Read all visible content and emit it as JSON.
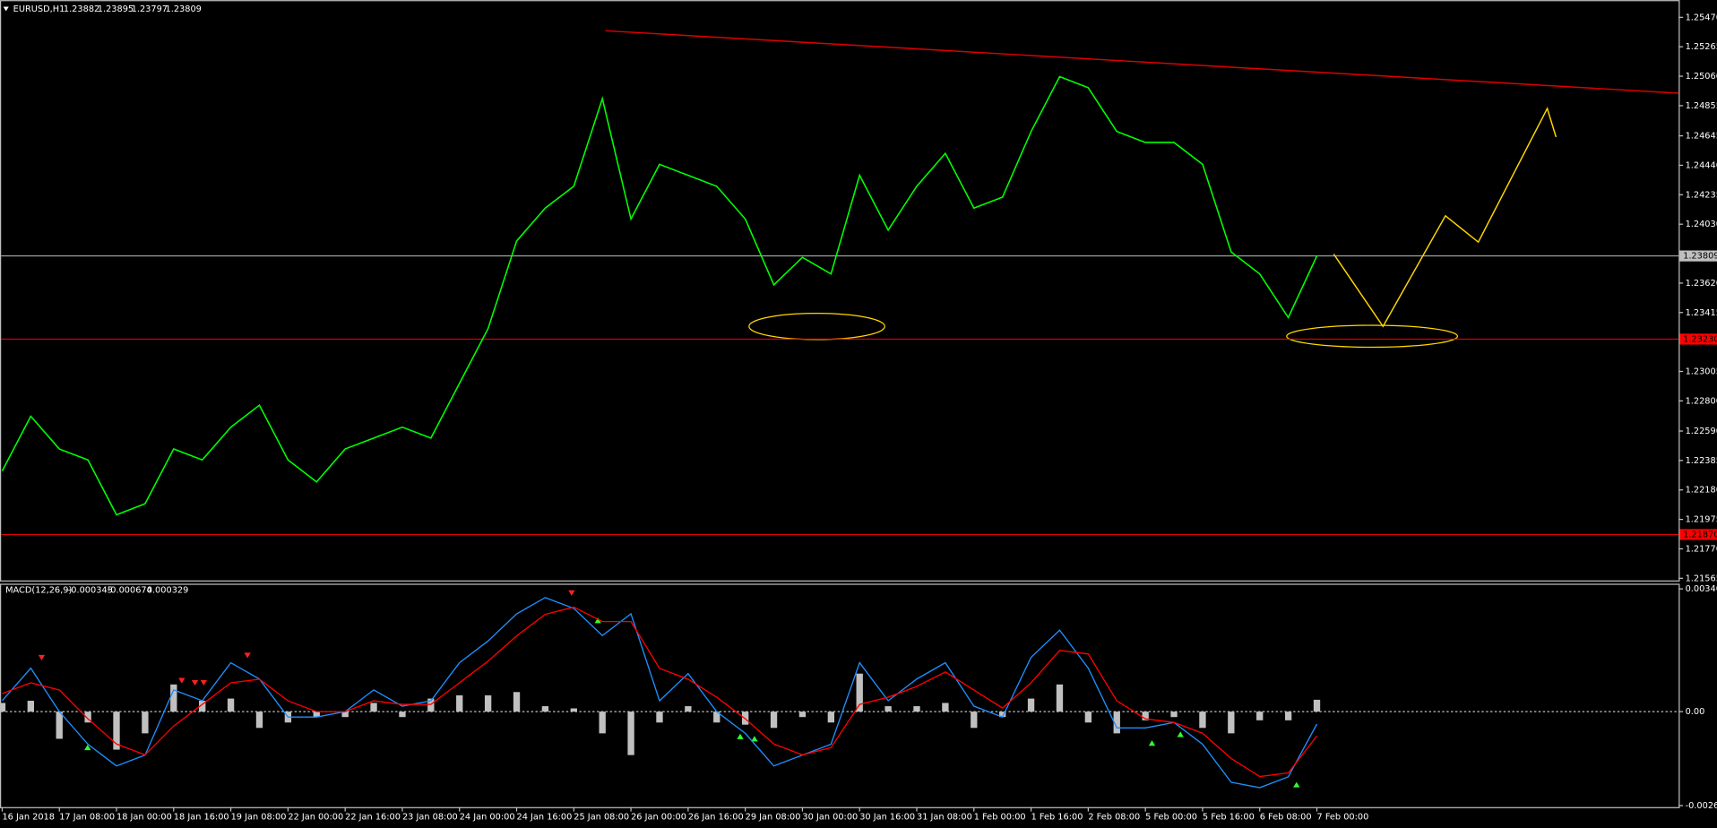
{
  "chart_data": [
    {
      "type": "line",
      "title": "EURUSD,H1",
      "ohlc": [
        1.23882,
        1.23895,
        1.23797,
        1.23809
      ],
      "categories": [
        "16 Jan 2018",
        null,
        "17 Jan 08:00",
        null,
        "18 Jan 00:00",
        null,
        "18 Jan 16:00",
        null,
        "19 Jan 08:00",
        null,
        "22 Jan 00:00",
        null,
        "22 Jan 16:00",
        null,
        "23 Jan 08:00",
        null,
        "24 Jan 00:00",
        null,
        "24 Jan 16:00",
        null,
        "25 Jan 08:00",
        null,
        "26 Jan 00:00",
        null,
        "26 Jan 16:00",
        null,
        "29 Jan 08:00",
        null,
        "30 Jan 00:00",
        null,
        "30 Jan 16:00",
        null,
        "31 Jan 08:00",
        null,
        "1 Feb 00:00",
        null,
        "1 Feb 16:00",
        null,
        "2 Feb 08:00",
        null,
        "5 Feb 00:00",
        null,
        "5 Feb 16:00",
        null,
        "6 Feb 08:00",
        null,
        "7 Feb 00:00"
      ],
      "series": [
        {
          "color": "#00ff00",
          "values": [
            1.22312,
            1.22693,
            1.22465,
            1.22389,
            1.22007,
            1.22084,
            1.22465,
            1.22389,
            1.22617,
            1.2277,
            1.22389,
            1.22236,
            1.22465,
            1.22541,
            1.22617,
            1.22541,
            1.22922,
            1.23303,
            1.23913,
            1.24142,
            1.24294,
            1.24904,
            1.24066,
            1.24447,
            1.2437,
            1.24294,
            1.24066,
            1.23608,
            1.23799,
            1.23684,
            1.2437,
            1.23989,
            1.24294,
            1.24523,
            1.24142,
            1.24218,
            1.24675,
            1.25057,
            1.2498,
            1.24675,
            1.24599,
            1.24599,
            1.24447,
            1.23837,
            1.23684,
            1.2338,
            1.23809
          ]
        }
      ],
      "ylim": [
        1.2155,
        1.2559
      ],
      "yticks": [
        {
          "value": 1.2547,
          "label": "1.25470"
        },
        1.25265,
        {
          "value": 1.2506,
          "label": "1.25060"
        },
        1.24855,
        1.24645,
        {
          "value": 1.2444,
          "label": "1.24440"
        },
        1.24235,
        {
          "value": 1.2403,
          "label": "1.24030"
        },
        {
          "value": 1.2362,
          "label": "1.23620"
        },
        1.23415,
        1.23005,
        {
          "value": 1.228,
          "label": "1.22800"
        },
        {
          "value": 1.2259,
          "label": "1.22590"
        },
        1.22385,
        {
          "value": 1.2218,
          "label": "1.22180"
        },
        1.21975,
        {
          "value": 1.2177,
          "label": "1.21770"
        },
        1.21565
      ],
      "hlines": [
        {
          "value": 1.23809,
          "color": "#c0c0c0"
        },
        {
          "value": 1.2323,
          "label": "1.23230",
          "color": "#ff0000"
        },
        {
          "value": 1.2187,
          "label": "1.21870",
          "color": "#ff0000"
        }
      ]
    },
    {
      "type": "macd",
      "title": "MACD(12,26,9)",
      "readings": [
        -0.000345,
        -0.000674,
        0.000329
      ],
      "series": [
        {
          "color": "#1e90ff",
          "values": [
            0.000302,
            0.001206,
            0,
            -0.000905,
            -0.001508,
            -0.001206,
            0.000603,
            0.000302,
            0.001357,
            0.000905,
            -0.000151,
            -0.000151,
            0,
            0.000603,
            0.000151,
            0.000302,
            0.001357,
            0.00196,
            0.002714,
            0.003166,
            0.002865,
            0.002111,
            0.002714,
            0.000302,
            0.001055,
            0,
            -0.000603,
            -0.001508,
            -0.001206,
            -0.000905,
            0.001357,
            0.000302,
            0.000905,
            0.001357,
            0.000151,
            -0.000151,
            0.001508,
            0.002261,
            0.001206,
            -0.000452,
            -0.000452,
            -0.000302,
            -0.000905,
            -0.00196,
            -0.002111,
            -0.001809,
            -0.000345
          ]
        },
        {
          "color": "#ff0000",
          "values": [
            0.0005,
            0.0008,
            0.0006,
            -0.0002,
            -0.0009,
            -0.0012,
            -0.0004,
            0.0002,
            0.0008,
            0.0009,
            0.0003,
            0,
            0,
            0.0003,
            0.0002,
            0.0002,
            0.0008,
            0.0014,
            0.0021,
            0.0027,
            0.0029,
            0.0025,
            0.0025,
            0.0012,
            0.0009,
            0.0004,
            -0.0002,
            -0.0009,
            -0.0012,
            -0.001,
            0.0002,
            0.0004,
            0.0007,
            0.0011,
            0.0006,
            0.0001,
            0.0008,
            0.0017,
            0.0016,
            0.0003,
            -0.0002,
            -0.0003,
            -0.0006,
            -0.0013,
            -0.0018,
            -0.0017,
            -0.000674
          ]
        }
      ],
      "histogram": {
        "color": "#c0c0c0",
        "values": [
          0.000241,
          0.000302,
          -0.000754,
          -0.000302,
          -0.001055,
          -0.000603,
          0.000754,
          0.000302,
          0.000362,
          -0.000452,
          -0.000302,
          -0.000151,
          -0.000151,
          0.000241,
          -0.000151,
          0.000362,
          0.000452,
          0.000452,
          0.000543,
          0.000151,
          9e-05,
          -0.000603,
          -0.001206,
          -0.000302,
          0.000151,
          -0.000302,
          -0.000362,
          -0.000452,
          -0.000151,
          -0.000302,
          0.001055,
          0.000151,
          0.000151,
          0.000241,
          -0.000452,
          -0.000151,
          0.000362,
          0.000754,
          -0.000302,
          -0.000603,
          -0.000241,
          -0.000151,
          -0.000452,
          -0.000603,
          -0.000241,
          -0.000241,
          0.000329
        ]
      },
      "ylim": [
        -0.00265,
        0.00355
      ],
      "yticks": [
        0.003407,
        {
          "value": 0,
          "label": "0.00"
        },
        -0.002608
      ]
    }
  ]
}
